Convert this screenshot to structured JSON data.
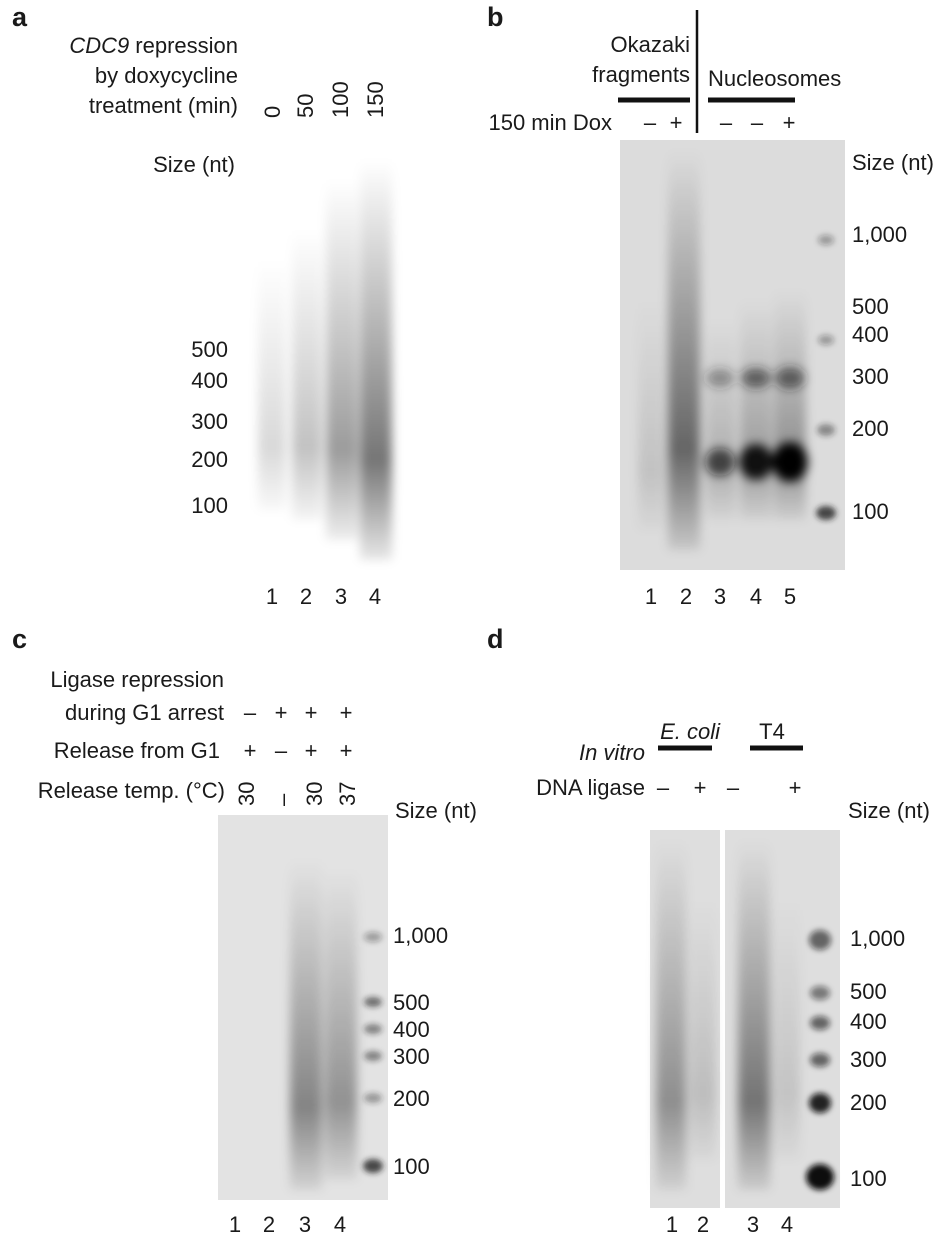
{
  "panels": [
    {
      "label": "a",
      "header": [
        [
          "CDC9",
          "repression"
        ],
        "by doxycycline",
        "treatment (min)"
      ],
      "lane_conditions": [
        "0",
        "50",
        "100",
        "150"
      ],
      "size_label": "Size (nt)",
      "size_markers": [
        "500",
        "400",
        "300",
        "200",
        "100"
      ],
      "lanes": [
        "1",
        "2",
        "3",
        "4"
      ]
    },
    {
      "label": "b",
      "groups": [
        [
          "Okazaki",
          "fragments"
        ],
        "Nucleosomes"
      ],
      "conditions": [
        {
          "name": "150 min Dox",
          "lanes": [
            "–",
            "+",
            "–",
            "–",
            "+"
          ]
        }
      ],
      "size_label": "Size (nt)",
      "size_markers": [
        "1,000",
        "500",
        "400",
        "300",
        "200",
        "100"
      ],
      "lanes": [
        "1",
        "2",
        "3",
        "4",
        "5"
      ]
    },
    {
      "label": "c",
      "conditions": [
        {
          "name": [
            "Ligase repression",
            "during G1 arrest"
          ],
          "lanes": [
            "–",
            "+",
            "+",
            "+"
          ]
        },
        {
          "name": "Release from G1",
          "lanes": [
            "+",
            "–",
            "+",
            "+"
          ]
        },
        {
          "name": "Release temp. (°C)",
          "lanes": [
            "30",
            "–",
            "30",
            "37"
          ]
        }
      ],
      "size_label": "Size (nt)",
      "size_markers": [
        "1,000",
        "500",
        "400",
        "300",
        "200",
        "100"
      ],
      "lanes": [
        "1",
        "2",
        "3",
        "4"
      ]
    },
    {
      "label": "d",
      "groups": [
        "E. coli",
        "T4"
      ],
      "conditions": [
        {
          "name": [
            "In vitro",
            "DNA ligase"
          ],
          "lanes": [
            "–",
            "+",
            "–",
            "+"
          ]
        }
      ],
      "size_label": "Size (nt)",
      "size_markers": [
        "1,000",
        "500",
        "400",
        "300",
        "200",
        "100"
      ],
      "lanes": [
        "1",
        "2",
        "3",
        "4"
      ]
    }
  ]
}
